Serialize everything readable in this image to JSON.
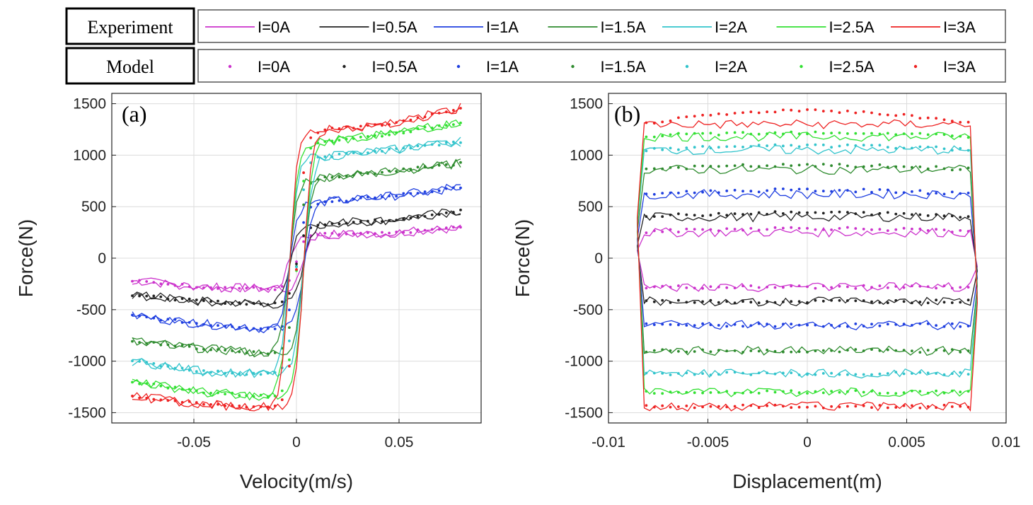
{
  "legend": {
    "experiment_title": "Experiment",
    "model_title": "Model",
    "entries": [
      {
        "label": "I=0A",
        "color": "#cc33cc"
      },
      {
        "label": "I=0.5A",
        "color": "#222222"
      },
      {
        "label": "I=1A",
        "color": "#1f3fe0"
      },
      {
        "label": "I=1.5A",
        "color": "#2e8b2e"
      },
      {
        "label": "I=2A",
        "color": "#33c4cc"
      },
      {
        "label": "I=2.5A",
        "color": "#33e033"
      },
      {
        "label": "I=3A",
        "color": "#ee2222"
      }
    ]
  },
  "chart_data": [
    {
      "type": "line",
      "panel_label": "(a)",
      "title": "",
      "xlabel": "Velocity(m/s)",
      "ylabel": "Force(N)",
      "xlim": [
        -0.09,
        0.09
      ],
      "ylim": [
        -1600,
        1600
      ],
      "x_ticks": [
        -0.05,
        0,
        0.05
      ],
      "x_tick_labels": [
        "-0.05",
        "0",
        "0.05"
      ],
      "y_ticks": [
        -1500,
        -1000,
        -500,
        0,
        500,
        1000,
        1500
      ],
      "y_tick_labels": [
        "-1500",
        "-1000",
        "-500",
        "0",
        "500",
        "1000",
        "1500"
      ],
      "grid": true,
      "transition_velocity_m_s": 0.006,
      "series": [
        {
          "name": "I=0A",
          "upper_force_N": [
            230,
            240,
            300
          ],
          "lower_force_N": [
            -300,
            -280,
            -220
          ]
        },
        {
          "name": "I=0.5A",
          "upper_force_N": [
            330,
            370,
            460
          ],
          "lower_force_N": [
            -450,
            -420,
            -360
          ]
        },
        {
          "name": "I=1A",
          "upper_force_N": [
            540,
            600,
            690
          ],
          "lower_force_N": [
            -690,
            -640,
            -560
          ]
        },
        {
          "name": "I=1.5A",
          "upper_force_N": [
            780,
            840,
            920
          ],
          "lower_force_N": [
            -930,
            -880,
            -800
          ]
        },
        {
          "name": "I=2A",
          "upper_force_N": [
            980,
            1050,
            1130
          ],
          "lower_force_N": [
            -1130,
            -1100,
            -1000
          ]
        },
        {
          "name": "I=2.5A",
          "upper_force_N": [
            1130,
            1200,
            1320
          ],
          "lower_force_N": [
            -1350,
            -1300,
            -1200
          ]
        },
        {
          "name": "I=3A",
          "upper_force_N": [
            1240,
            1300,
            1460
          ],
          "lower_force_N": [
            -1450,
            -1420,
            -1340
          ]
        }
      ],
      "series_sample_x": [
        0.01,
        0.045,
        0.08
      ]
    },
    {
      "type": "line",
      "panel_label": "(b)",
      "title": "",
      "xlabel": "Displacement(m)",
      "ylabel": "Force(N)",
      "xlim": [
        -0.01,
        0.01
      ],
      "ylim": [
        -1600,
        1600
      ],
      "x_ticks": [
        -0.01,
        -0.005,
        0,
        0.005,
        0.01
      ],
      "x_tick_labels": [
        "-0.01",
        "-0.005",
        "0",
        "0.005",
        "0.01"
      ],
      "y_ticks": [
        -1500,
        -1000,
        -500,
        0,
        500,
        1000,
        1500
      ],
      "y_tick_labels": [
        "-1500",
        "-1000",
        "-500",
        "0",
        "500",
        "1000",
        "1500"
      ],
      "grid": true,
      "displacement_amplitude_m": 0.0085,
      "series": [
        {
          "name": "I=0A",
          "upper_force_N": 250,
          "lower_force_N": -280
        },
        {
          "name": "I=0.5A",
          "upper_force_N": 400,
          "lower_force_N": -420
        },
        {
          "name": "I=1A",
          "upper_force_N": 620,
          "lower_force_N": -650
        },
        {
          "name": "I=1.5A",
          "upper_force_N": 860,
          "lower_force_N": -900
        },
        {
          "name": "I=2A",
          "upper_force_N": 1050,
          "lower_force_N": -1120
        },
        {
          "name": "I=2.5A",
          "upper_force_N": 1180,
          "lower_force_N": -1300
        },
        {
          "name": "I=3A",
          "upper_force_N": 1300,
          "lower_force_N": -1440
        }
      ]
    }
  ]
}
